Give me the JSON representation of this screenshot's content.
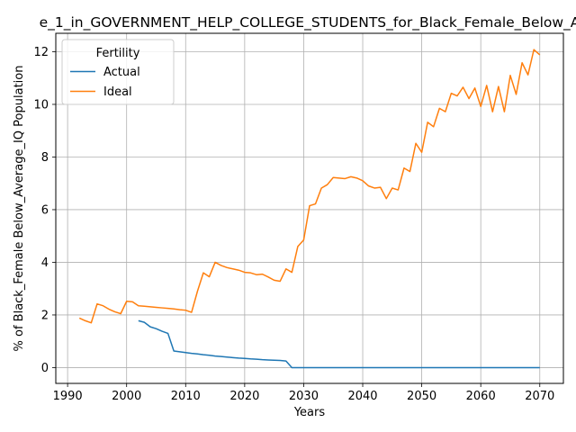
{
  "chart_data": {
    "type": "line",
    "title": "e_1_in_GOVERNMENT_HELP_COLLEGE_STUDENTS_for_Black_Female_Below_A",
    "xlabel": "Years",
    "ylabel": "% of Black_Female Below_Average_IQ Population",
    "xlim": [
      1988,
      2074
    ],
    "ylim": [
      -0.6,
      12.7
    ],
    "xticks": [
      1990,
      2000,
      2010,
      2020,
      2030,
      2040,
      2050,
      2060,
      2070
    ],
    "yticks": [
      0,
      2,
      4,
      6,
      8,
      10,
      12
    ],
    "grid": true,
    "legend": {
      "title": "Fertility",
      "position": "upper-left"
    },
    "series": [
      {
        "name": "Actual",
        "color": "#1f77b4",
        "x": [
          2002,
          2003,
          2004,
          2005,
          2006,
          2007,
          2008,
          2009,
          2010,
          2011,
          2012,
          2013,
          2014,
          2015,
          2016,
          2017,
          2018,
          2019,
          2020,
          2021,
          2022,
          2023,
          2024,
          2025,
          2026,
          2027,
          2028,
          2030,
          2040,
          2050,
          2060,
          2070
        ],
        "y": [
          1.78,
          1.72,
          1.55,
          1.48,
          1.38,
          1.3,
          0.63,
          0.6,
          0.57,
          0.54,
          0.52,
          0.49,
          0.47,
          0.44,
          0.42,
          0.4,
          0.38,
          0.36,
          0.35,
          0.33,
          0.32,
          0.3,
          0.29,
          0.28,
          0.27,
          0.25,
          0.0,
          0.0,
          0.0,
          0.0,
          0.0,
          0.0
        ]
      },
      {
        "name": "Ideal",
        "color": "#ff7f0e",
        "x": [
          1992,
          1993,
          1994,
          1995,
          1996,
          1997,
          1998,
          1999,
          2000,
          2001,
          2002,
          2003,
          2004,
          2005,
          2006,
          2007,
          2008,
          2009,
          2010,
          2011,
          2012,
          2013,
          2014,
          2015,
          2016,
          2017,
          2018,
          2019,
          2020,
          2021,
          2022,
          2023,
          2024,
          2025,
          2026,
          2027,
          2028,
          2029,
          2030,
          2031,
          2032,
          2033,
          2034,
          2035,
          2036,
          2037,
          2038,
          2039,
          2040,
          2041,
          2042,
          2043,
          2044,
          2045,
          2046,
          2047,
          2048,
          2049,
          2050,
          2051,
          2052,
          2053,
          2054,
          2055,
          2056,
          2057,
          2058,
          2059,
          2060,
          2061,
          2062,
          2063,
          2064,
          2065,
          2066,
          2067,
          2068,
          2069,
          2070
        ],
        "y": [
          1.88,
          1.78,
          1.7,
          2.42,
          2.35,
          2.22,
          2.12,
          2.05,
          2.52,
          2.5,
          2.35,
          2.33,
          2.31,
          2.29,
          2.27,
          2.25,
          2.23,
          2.2,
          2.18,
          2.1,
          2.9,
          3.6,
          3.45,
          4.0,
          3.88,
          3.8,
          3.75,
          3.7,
          3.62,
          3.6,
          3.53,
          3.55,
          3.44,
          3.32,
          3.28,
          3.75,
          3.62,
          4.6,
          4.85,
          6.15,
          6.22,
          6.82,
          6.95,
          7.22,
          7.2,
          7.18,
          7.25,
          7.2,
          7.1,
          6.9,
          6.82,
          6.85,
          6.42,
          6.82,
          6.75,
          7.58,
          7.45,
          8.52,
          8.18,
          9.32,
          9.15,
          9.85,
          9.72,
          10.42,
          10.32,
          10.65,
          10.22,
          10.62,
          9.92,
          10.72,
          9.72,
          10.68,
          9.72,
          11.1,
          10.38,
          11.58,
          11.12,
          12.08,
          11.88
        ]
      }
    ]
  }
}
